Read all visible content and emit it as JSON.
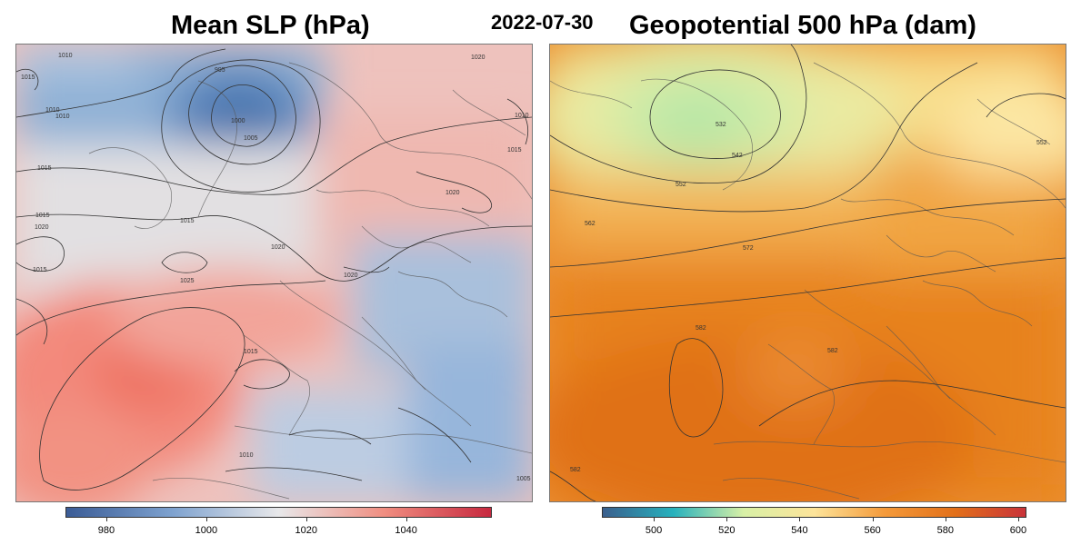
{
  "date": "2022-07-30",
  "left_panel": {
    "title": "Mean SLP (hPa)",
    "colorbar": {
      "min": 972,
      "max": 1057,
      "ticks": [
        "980",
        "1000",
        "1020",
        "1040"
      ],
      "colors": [
        "#3b5c96",
        "#7ea2cf",
        "#e8e8ea",
        "#f08d80",
        "#c7293f"
      ]
    },
    "contour_labels": [
      "995",
      "1000",
      "1005",
      "1010",
      "1010",
      "1015",
      "1015",
      "1015",
      "1020",
      "1020",
      "1020",
      "1025",
      "1015",
      "1015",
      "1010",
      "1020",
      "1005",
      "1015",
      "1010",
      "1010",
      "1015",
      "1020"
    ]
  },
  "right_panel": {
    "title": "Geopotential 500 hPa (dam)",
    "colorbar": {
      "min": 486,
      "max": 602,
      "ticks": [
        "500",
        "520",
        "540",
        "560",
        "580",
        "600"
      ],
      "colors": [
        "#3a5f8d",
        "#27b1bd",
        "#d8f0a6",
        "#fde49a",
        "#f49a3a",
        "#e2701a",
        "#c9333a"
      ]
    },
    "contour_labels": [
      "532",
      "542",
      "552",
      "562",
      "572",
      "582",
      "582",
      "552",
      "582"
    ]
  }
}
